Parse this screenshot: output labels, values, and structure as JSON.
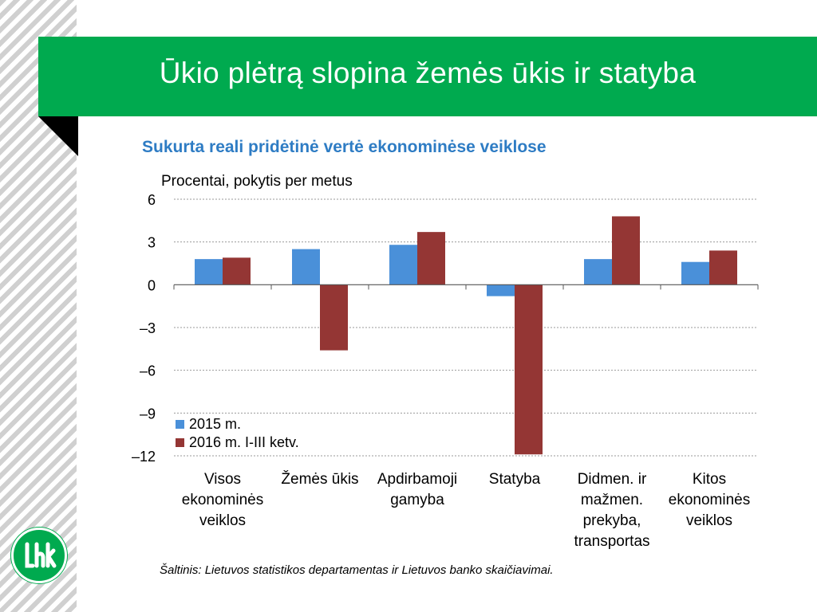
{
  "slide": {
    "title": "Ūkio plėtrą slopina žemės ūkis ir statyba",
    "banner_color": "#00aa4f"
  },
  "logo": {
    "icon": "lbk-logo-icon",
    "color": "#00aa4f"
  },
  "chart_data": {
    "type": "bar",
    "title": "Sukurta reali pridėtinė vertė ekonominėse veiklose",
    "title_color": "#2e7cc4",
    "ylabel": "Procentai, pokytis per metus",
    "ylim": [
      -12,
      6
    ],
    "yticks": [
      "6",
      "3",
      "0",
      "–3",
      "–6",
      "–9",
      "–12"
    ],
    "ytick_values": [
      6,
      3,
      0,
      -3,
      -6,
      -9,
      -12
    ],
    "grid": true,
    "categories": [
      [
        "Visos",
        "ekonominės",
        "veiklos"
      ],
      [
        "Žemės ūkis"
      ],
      [
        "Apdirbamoji",
        "gamyba"
      ],
      [
        "Statyba"
      ],
      [
        "Didmen. ir",
        "mažmen.",
        "prekyba,",
        "transportas"
      ],
      [
        "Kitos",
        "ekonominės",
        "veiklos"
      ]
    ],
    "series": [
      {
        "name": "2015 m.",
        "color": "#4a90d9",
        "values": [
          1.8,
          2.5,
          2.8,
          -0.8,
          1.8,
          1.6
        ]
      },
      {
        "name": "2016 m. I-III ketv.",
        "color": "#943634",
        "values": [
          1.9,
          -4.6,
          3.7,
          -11.9,
          4.8,
          2.4
        ]
      }
    ],
    "legend_position": "bottom-left",
    "source": "Šaltinis: Lietuvos statistikos departamentas ir Lietuvos banko skaičiavimai."
  }
}
